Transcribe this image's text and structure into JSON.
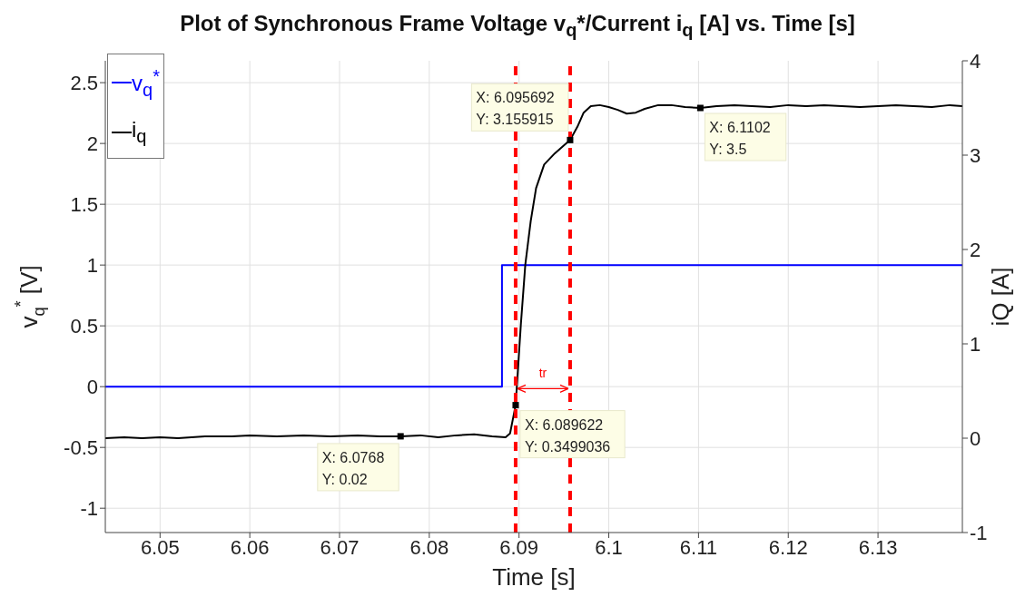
{
  "chart_data": {
    "type": "line",
    "title": "Plot of Synchronous Frame Voltage v$_{q}$*/Current i$_{q}$ [A] vs. Time [s]",
    "xlabel": "Time [s]",
    "ylabel": "v$_{q}$$^{*}$ [V]",
    "y2label": "iQ [A]",
    "xlim": [
      6.0439,
      6.1394
    ],
    "xticks": [
      6.05,
      6.06,
      6.07,
      6.08,
      6.09,
      6.1,
      6.11,
      6.12,
      6.13
    ],
    "ylim": [
      -1.2,
      2.68
    ],
    "yticks": [
      -1,
      -0.5,
      0,
      0.5,
      1,
      1.5,
      2,
      2.5
    ],
    "y2lim": [
      -1,
      4
    ],
    "y2ticks": [
      -1,
      0,
      1,
      2,
      3,
      4
    ],
    "grid": true,
    "legend": "top left",
    "series": [
      {
        "name": "v$_{q}$$^{*}$",
        "color": "#0000ff",
        "type": "step",
        "x": [
          6.0439,
          6.0881,
          6.1394
        ],
        "values": [
          0,
          1,
          1
        ]
      },
      {
        "name": "i$_{q}$",
        "color": "#000000",
        "axis": "y2",
        "x": [
          6.0439,
          6.046,
          6.048,
          6.05,
          6.052,
          6.055,
          6.058,
          6.06,
          6.063,
          6.066,
          6.069,
          6.072,
          6.0745,
          6.0768,
          6.079,
          6.081,
          6.083,
          6.085,
          6.087,
          6.0885,
          6.089,
          6.089622,
          6.0902,
          6.0907,
          6.0913,
          6.0919,
          6.0928,
          6.094,
          6.095692,
          6.0965,
          6.0972,
          6.098,
          6.099,
          6.1,
          6.101,
          6.102,
          6.103,
          6.104,
          6.1055,
          6.107,
          6.1085,
          6.1102,
          6.112,
          6.114,
          6.116,
          6.118,
          6.12,
          6.122,
          6.124,
          6.126,
          6.128,
          6.13,
          6.132,
          6.134,
          6.136,
          6.138,
          6.1394
        ],
        "values": [
          0.0,
          0.01,
          0.0,
          0.01,
          0.0,
          0.02,
          0.02,
          0.03,
          0.02,
          0.03,
          0.02,
          0.03,
          0.02,
          0.02,
          0.03,
          0.01,
          0.03,
          0.04,
          0.02,
          0.01,
          0.05,
          0.35,
          1.2,
          1.84,
          2.3,
          2.65,
          2.9,
          3.02,
          3.16,
          3.3,
          3.45,
          3.52,
          3.53,
          3.51,
          3.48,
          3.44,
          3.45,
          3.49,
          3.53,
          3.53,
          3.51,
          3.5,
          3.52,
          3.53,
          3.52,
          3.51,
          3.53,
          3.52,
          3.53,
          3.52,
          3.51,
          3.52,
          3.53,
          3.52,
          3.51,
          3.53,
          3.52
        ]
      },
      {
        "type": "scatter",
        "color": "#000000",
        "marker": "square",
        "axis": "y2",
        "x": [
          6.0768,
          6.095692,
          6.1102,
          6.089622
        ],
        "values": [
          0.02,
          3.16,
          3.5,
          0.35
        ]
      }
    ],
    "ref_lines": [
      {
        "axis": "x",
        "value": 6.089622,
        "color": "#ff0000",
        "line_style": "dashed"
      },
      {
        "axis": "x",
        "value": 6.095692,
        "color": "#ff0000",
        "line_style": "dashed"
      }
    ],
    "annotations": [
      "X: 6.0768\nY: 0.02",
      "X: 6.095692\nY: 3.155915",
      "X: 6.1102\nY: 3.5",
      "X: 6.089622\nY: 0.3499036",
      "tr"
    ]
  }
}
